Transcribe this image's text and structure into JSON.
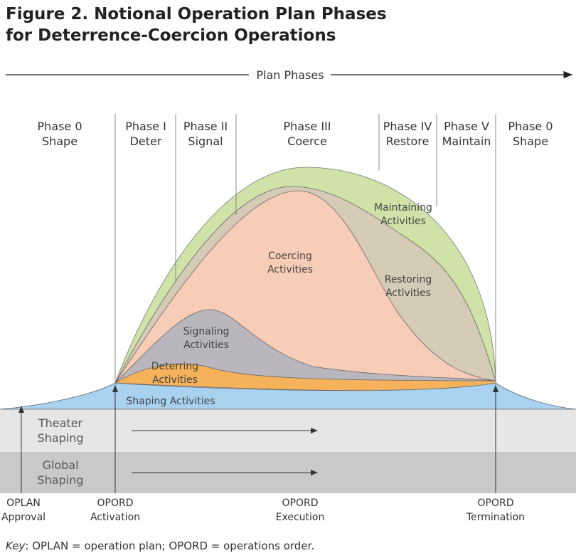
{
  "title": {
    "lines": [
      "Figure 2. Notional Operation Plan Phases",
      "for Deterrence-Coercion Operations"
    ]
  },
  "plan_phases": "Plan Phases",
  "phases": [
    {
      "name": "Phase 0",
      "label": "Shape"
    },
    {
      "name": "Phase I",
      "label": "Deter"
    },
    {
      "name": "Phase II",
      "label": "Signal"
    },
    {
      "name": "Phase III",
      "label": "Coerce"
    },
    {
      "name": "Phase IV",
      "label": "Restore"
    },
    {
      "name": "Phase V",
      "label": "Maintain"
    },
    {
      "name": "Phase 0",
      "label": "Shape"
    }
  ],
  "activities": {
    "maintaining": [
      "Maintaining",
      "Activities"
    ],
    "coercing": [
      "Coercing",
      "Activities"
    ],
    "restoring": [
      "Restoring",
      "Activities"
    ],
    "signaling": [
      "Signaling",
      "Activities"
    ],
    "deterring": [
      "Deterring",
      "Activities"
    ],
    "shaping": "Shaping Activities"
  },
  "bands": {
    "theater": [
      "Theater",
      "Shaping"
    ],
    "global": [
      "Global",
      "Shaping"
    ]
  },
  "milestones": [
    [
      "OPLAN",
      "Approval"
    ],
    [
      "OPORD",
      "Activation"
    ],
    [
      "OPORD",
      "Execution"
    ],
    [
      "OPORD",
      "Termination"
    ]
  ],
  "key": {
    "term": "Key",
    "text": ": OPLAN = operation plan; OPORD = operations order."
  }
}
